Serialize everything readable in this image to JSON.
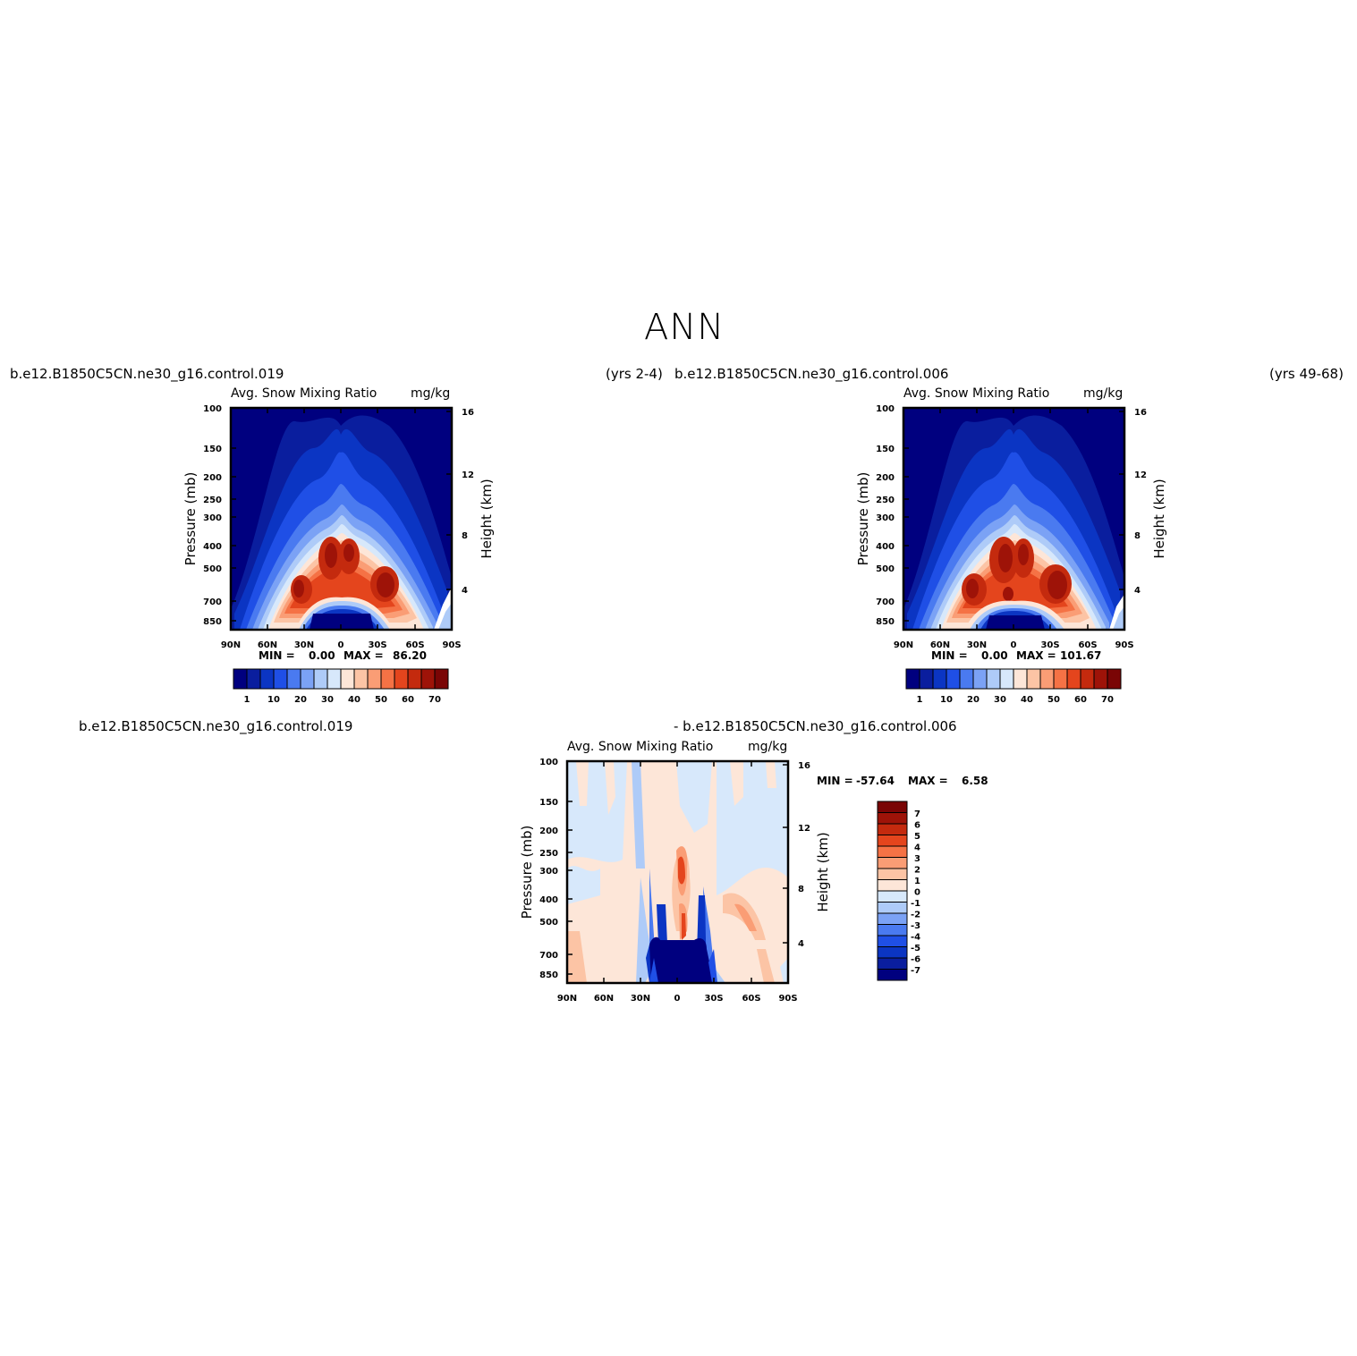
{
  "page": {
    "title": "ANN",
    "top_left_case": "b.e12.B1850C5CN.ne30_g16.control.019",
    "top_left_years": "(yrs 2-4)",
    "top_right_case": "b.e12.B1850C5CN.ne30_g16.control.006",
    "top_right_years": "(yrs 49-68)",
    "bottom_case_a": "b.e12.B1850C5CN.ne30_g16.control.019",
    "bottom_case_b": "- b.e12.B1850C5CN.ne30_g16.control.006"
  },
  "colors": {
    "abs_scale": [
      "#00007f",
      "#0a1e9e",
      "#0b35c3",
      "#1f4fe6",
      "#4a7af0",
      "#7ba2f5",
      "#aecbf8",
      "#d7e8fb",
      "#fde6d8",
      "#fcc4a5",
      "#fa9d75",
      "#f57245",
      "#e4451d",
      "#c42a0e",
      "#9e1308",
      "#7a0505"
    ],
    "diff_scale": [
      "#00007f",
      "#0a1e9e",
      "#0b35c3",
      "#1f4fe6",
      "#4a7af0",
      "#7ba2f5",
      "#aecbf8",
      "#d7e8fb",
      "#fde6d8",
      "#fcc4a5",
      "#fa9d75",
      "#f57245",
      "#e4451d",
      "#c42a0e",
      "#9e1308",
      "#7a0505"
    ]
  },
  "chart_data": [
    {
      "type": "heatmap",
      "panel": "top-left",
      "title": "Avg. Snow Mixing Ratio",
      "units": "mg/kg",
      "xlabel": "",
      "ylabel": "Pressure (mb)",
      "ylabel_right": "Height (km)",
      "x_ticks": [
        "90N",
        "60N",
        "30N",
        "0",
        "30S",
        "60S",
        "90S"
      ],
      "y_ticks": [
        "100",
        "150",
        "200",
        "250",
        "300",
        "400",
        "500",
        "700",
        "850"
      ],
      "y_ticks_right": [
        "16",
        "12",
        "8",
        "4"
      ],
      "min_label": "MIN =",
      "min_value": "0.00",
      "max_label": "MAX =",
      "max_value": "86.20",
      "colorbar_labels": [
        "1",
        "10",
        "20",
        "30",
        "40",
        "50",
        "60",
        "70"
      ],
      "min": 0.0,
      "max": 86.2
    },
    {
      "type": "heatmap",
      "panel": "top-right",
      "title": "Avg. Snow Mixing Ratio",
      "units": "mg/kg",
      "xlabel": "",
      "ylabel": "Pressure (mb)",
      "ylabel_right": "Height (km)",
      "x_ticks": [
        "90N",
        "60N",
        "30N",
        "0",
        "30S",
        "60S",
        "90S"
      ],
      "y_ticks": [
        "100",
        "150",
        "200",
        "250",
        "300",
        "400",
        "500",
        "700",
        "850"
      ],
      "y_ticks_right": [
        "16",
        "12",
        "8",
        "4"
      ],
      "min_label": "MIN =",
      "min_value": "0.00",
      "max_label": "MAX =",
      "max_value": "101.67",
      "colorbar_labels": [
        "1",
        "10",
        "20",
        "30",
        "40",
        "50",
        "60",
        "70"
      ],
      "min": 0.0,
      "max": 101.67
    },
    {
      "type": "heatmap",
      "panel": "bottom-difference",
      "title": "Avg. Snow Mixing Ratio",
      "units": "mg/kg",
      "xlabel": "",
      "ylabel": "Pressure (mb)",
      "ylabel_right": "Height (km)",
      "x_ticks": [
        "90N",
        "60N",
        "30N",
        "0",
        "30S",
        "60S",
        "90S"
      ],
      "y_ticks": [
        "100",
        "150",
        "200",
        "250",
        "300",
        "400",
        "500",
        "700",
        "850"
      ],
      "y_ticks_right": [
        "16",
        "12",
        "8",
        "4"
      ],
      "min_label": "MIN =",
      "min_value": "-57.64",
      "max_label": "MAX =",
      "max_value": "6.58",
      "colorbar_labels": [
        "7",
        "6",
        "5",
        "4",
        "3",
        "2",
        "1",
        "0",
        "-1",
        "-2",
        "-3",
        "-4",
        "-5",
        "-6",
        "-7"
      ],
      "min": -57.64,
      "max": 6.58
    }
  ]
}
